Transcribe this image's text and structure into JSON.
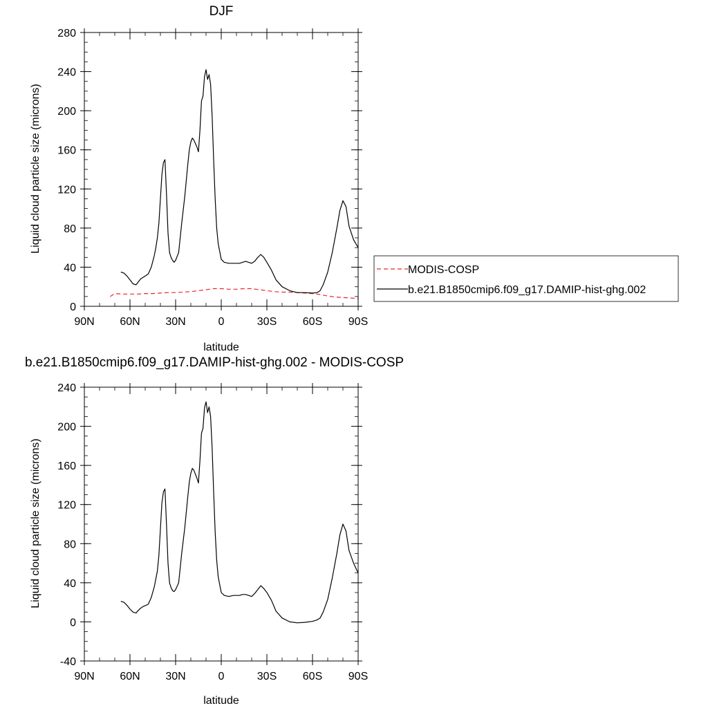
{
  "chart_data": [
    {
      "type": "line",
      "title": "DJF",
      "xlabel": "latitude",
      "ylabel": "Liquid cloud particle size (microns)",
      "xlim": [
        90,
        -90
      ],
      "ylim": [
        0,
        280
      ],
      "x_tick_values": [
        90,
        60,
        30,
        0,
        -30,
        -60,
        -90
      ],
      "x_tick_labels": [
        "90N",
        "60N",
        "30N",
        "0",
        "30S",
        "60S",
        "90S"
      ],
      "y_tick_values": [
        0,
        40,
        80,
        120,
        160,
        200,
        240,
        280
      ],
      "y_tick_labels": [
        "0",
        "40",
        "80",
        "120",
        "160",
        "200",
        "240",
        "280"
      ],
      "grid": false,
      "legend_position": "right",
      "series": [
        {
          "name": "MODIS-COSP",
          "color": "#e8242a",
          "dash": "dashed",
          "x": [
            73,
            70,
            65,
            60,
            55,
            50,
            45,
            40,
            35,
            30,
            25,
            20,
            15,
            10,
            5,
            0,
            -5,
            -10,
            -15,
            -20,
            -25,
            -30,
            -35,
            -40,
            -45,
            -50,
            -55,
            -60,
            -65,
            -70,
            -75,
            -80,
            -85,
            -90
          ],
          "y": [
            10,
            13,
            12.5,
            12.5,
            12.5,
            13,
            13,
            13.5,
            14,
            14,
            14.5,
            15,
            16,
            17,
            18,
            18,
            17.5,
            17.5,
            18,
            18,
            17,
            16,
            15,
            14.5,
            14.5,
            14,
            13.5,
            13,
            12,
            10.5,
            9.5,
            9,
            8.5,
            8
          ]
        },
        {
          "name": "b.e21.B1850cmip6.f09_g17.DAMIP-hist-ghg.002",
          "color": "#000000",
          "dash": "solid",
          "x": [
            66,
            64,
            62,
            60,
            58,
            56,
            55,
            53,
            51,
            48,
            46,
            44,
            43,
            42,
            41,
            40,
            39,
            38,
            37,
            36,
            35,
            34,
            33,
            32,
            31,
            30,
            28,
            26,
            24,
            22,
            21,
            20,
            19,
            18,
            16,
            15,
            14,
            13,
            12,
            11,
            10,
            9,
            8,
            7,
            6,
            5,
            4,
            3,
            2,
            0,
            -2,
            -5,
            -8,
            -10,
            -12,
            -14,
            -16,
            -18,
            -20,
            -22,
            -24,
            -26,
            -28,
            -30,
            -33,
            -36,
            -40,
            -45,
            -50,
            -55,
            -60,
            -63,
            -65,
            -67,
            -70,
            -73,
            -76,
            -78,
            -80,
            -82,
            -84,
            -87,
            -90
          ],
          "y": [
            35,
            34,
            31,
            27,
            23,
            22,
            24,
            28,
            30,
            33,
            40,
            52,
            60,
            70,
            85,
            110,
            135,
            147,
            150,
            115,
            75,
            55,
            50,
            47,
            45,
            47,
            55,
            85,
            112,
            145,
            160,
            168,
            172,
            170,
            163,
            158,
            180,
            210,
            215,
            235,
            242,
            232,
            237,
            227,
            195,
            150,
            110,
            80,
            64,
            48,
            45,
            44,
            44,
            44,
            44,
            45,
            46,
            45,
            44,
            46,
            50,
            53,
            50,
            45,
            37,
            27,
            20,
            16,
            14,
            14,
            13.5,
            14,
            16,
            22,
            35,
            55,
            80,
            98,
            108,
            102,
            82,
            68,
            60
          ]
        }
      ]
    },
    {
      "type": "line",
      "title": "b.e21.B1850cmip6.f09_g17.DAMIP-hist-ghg.002 - MODIS-COSP",
      "xlabel": "latitude",
      "ylabel": "Liquid cloud particle size (microns)",
      "xlim": [
        90,
        -90
      ],
      "ylim": [
        -40,
        240
      ],
      "x_tick_values": [
        90,
        60,
        30,
        0,
        -30,
        -60,
        -90
      ],
      "x_tick_labels": [
        "90N",
        "60N",
        "30N",
        "0",
        "30S",
        "60S",
        "90S"
      ],
      "y_tick_values": [
        -40,
        0,
        40,
        80,
        120,
        160,
        200,
        240
      ],
      "y_tick_labels": [
        "-40",
        "0",
        "40",
        "80",
        "120",
        "160",
        "200",
        "240"
      ],
      "grid": false,
      "series": [
        {
          "color": "#000000",
          "dash": "solid",
          "x": [
            66,
            64,
            62,
            60,
            58,
            56,
            55,
            53,
            51,
            48,
            46,
            44,
            43,
            42,
            41,
            40,
            39,
            38,
            37,
            36,
            35,
            34,
            33,
            32,
            31,
            30,
            28,
            26,
            24,
            22,
            21,
            20,
            19,
            18,
            16,
            15,
            14,
            13,
            12,
            11,
            10,
            9,
            8,
            7,
            6,
            5,
            4,
            3,
            2,
            0,
            -2,
            -5,
            -8,
            -10,
            -12,
            -14,
            -16,
            -18,
            -20,
            -22,
            -24,
            -26,
            -28,
            -30,
            -33,
            -36,
            -40,
            -45,
            -50,
            -55,
            -60,
            -63,
            -65,
            -67,
            -70,
            -73,
            -76,
            -78,
            -80,
            -82,
            -84,
            -87,
            -90
          ],
          "y": [
            21,
            20,
            17,
            13,
            10,
            9,
            11,
            14,
            16,
            18,
            25,
            36,
            44,
            52,
            68,
            95,
            122,
            133,
            136,
            100,
            60,
            40,
            35,
            32,
            31,
            33,
            40,
            70,
            96,
            128,
            143,
            152,
            157,
            155,
            147,
            142,
            165,
            193,
            198,
            219,
            225,
            214,
            220,
            210,
            178,
            133,
            92,
            63,
            46,
            30,
            27,
            26,
            27,
            27,
            27,
            28,
            28,
            27,
            26,
            29,
            33,
            37,
            34,
            30,
            22,
            11,
            4,
            0,
            -1,
            -0.5,
            0.5,
            2,
            4,
            10,
            23,
            45,
            70,
            89,
            100,
            93,
            73,
            60,
            50
          ]
        }
      ]
    }
  ]
}
